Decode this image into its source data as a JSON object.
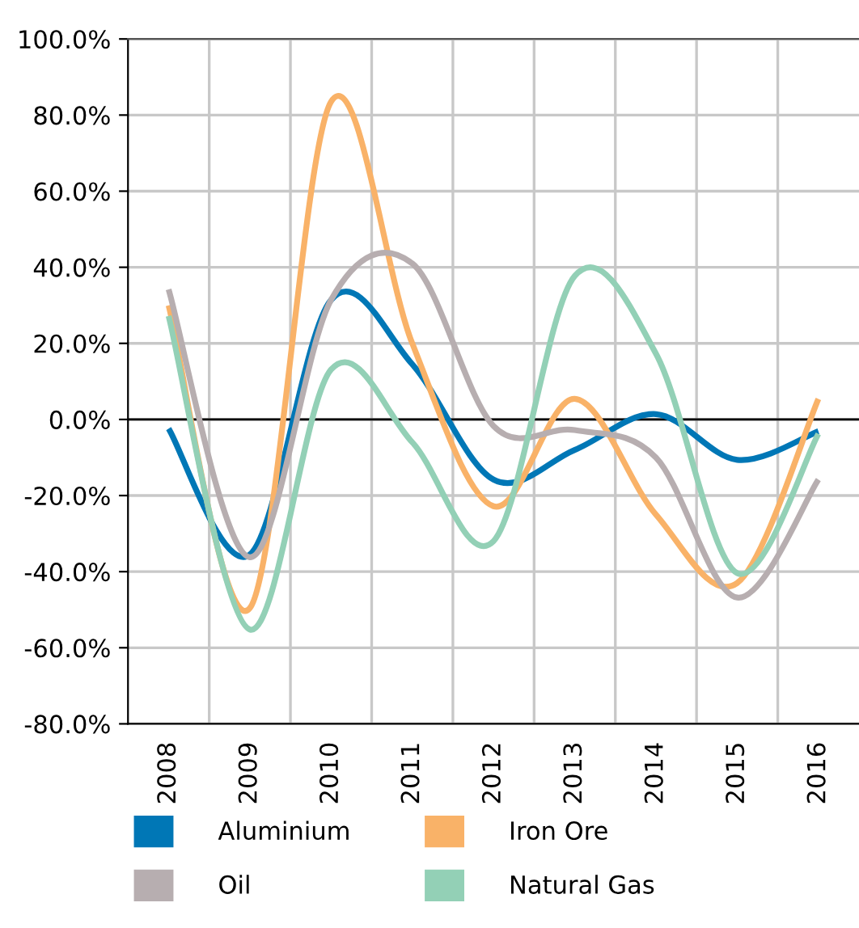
{
  "chart_data": {
    "type": "line",
    "categories": [
      "2008",
      "2009",
      "2010",
      "2011",
      "2012",
      "2013",
      "2014",
      "2015",
      "2016"
    ],
    "series": [
      {
        "name": "Aluminium",
        "color": "#0077b6",
        "values": [
          -2.4,
          -35.5,
          31.4,
          14.5,
          -15.8,
          -8,
          1.4,
          -10.6,
          -3.1
        ]
      },
      {
        "name": "Iron Ore",
        "color": "#f9b268",
        "values": [
          30,
          -49.6,
          83.5,
          20,
          -22.8,
          5.4,
          -25,
          -43,
          5.4
        ]
      },
      {
        "name": "Oil",
        "color": "#b7aeb0",
        "values": [
          34.2,
          -36.2,
          31.4,
          41,
          -1.7,
          -2.8,
          -10,
          -46.8,
          -15.8
        ]
      },
      {
        "name": "Natural Gas",
        "color": "#93d0b6",
        "values": [
          27.2,
          -55.2,
          13.1,
          -6,
          -32,
          37.7,
          17.3,
          -40.4,
          -3.8
        ]
      }
    ],
    "ylim": [
      -80,
      100
    ],
    "yticks": [
      {
        "value": -80,
        "label": "-80.0%"
      },
      {
        "value": -60,
        "label": "-60.0%"
      },
      {
        "value": -40,
        "label": "-40.0%"
      },
      {
        "value": -20,
        "label": "-20.0%"
      },
      {
        "value": 0,
        "label": "0.0%"
      },
      {
        "value": 20,
        "label": "20.0%"
      },
      {
        "value": 40,
        "label": "40.0%"
      },
      {
        "value": 60,
        "label": "60.0%"
      },
      {
        "value": 80,
        "label": "80.0%"
      },
      {
        "value": 100,
        "label": "100.0%"
      }
    ],
    "ref_lines": [
      {
        "axis": "y",
        "value": 0,
        "color": "#000000"
      }
    ],
    "grid": true,
    "legend": "bottom",
    "marker": "none",
    "line_style": "solid"
  }
}
